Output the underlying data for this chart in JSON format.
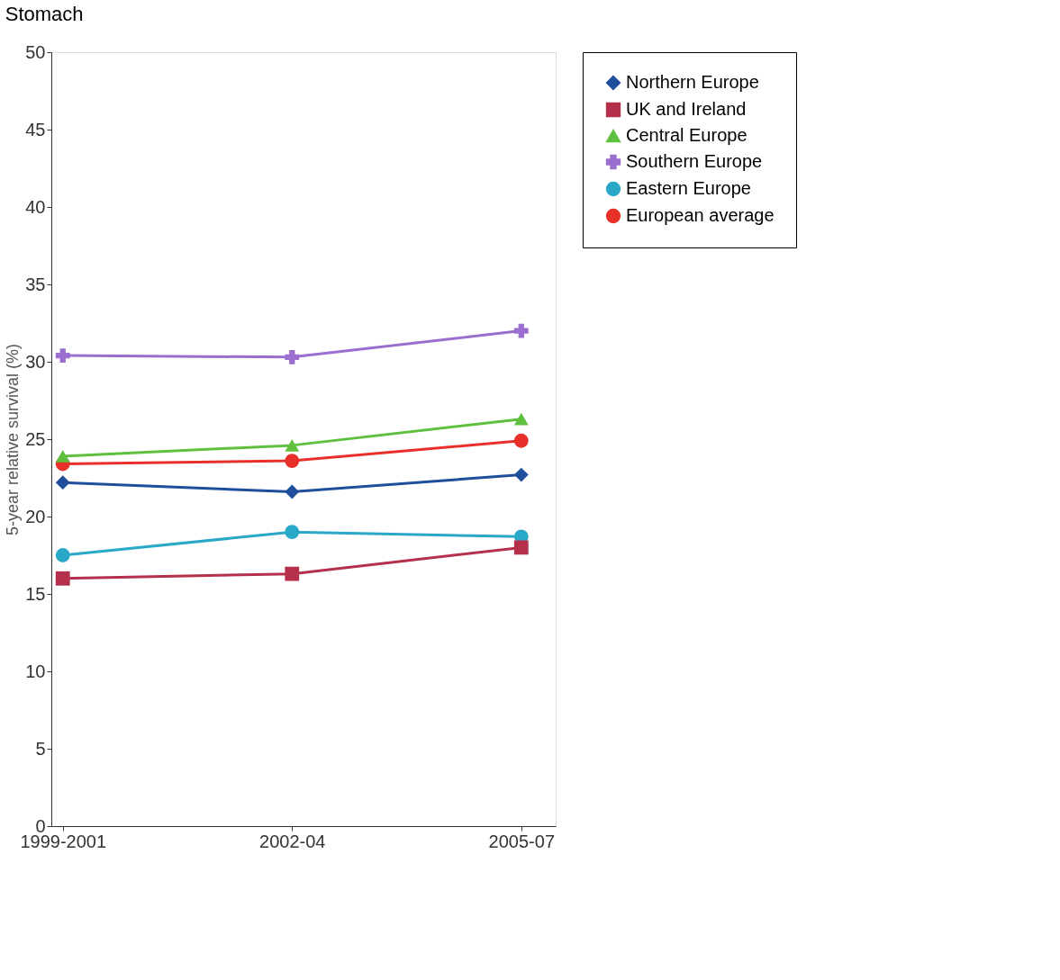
{
  "chart_data": {
    "type": "line",
    "title": "Stomach",
    "ylabel": "5-year relative survival (%)",
    "categories": [
      "1999-2001",
      "2002-04",
      "2005-07"
    ],
    "series": [
      {
        "name": "Northern Europe",
        "color": "#1f4e9c",
        "marker": "diamond",
        "values": [
          22.2,
          21.6,
          22.7
        ]
      },
      {
        "name": "UK and Ireland",
        "color": "#b5304a",
        "marker": "square",
        "values": [
          16.0,
          16.3,
          18.0
        ]
      },
      {
        "name": "Central Europe",
        "color": "#5fbf3f",
        "marker": "triangle",
        "values": [
          23.9,
          24.6,
          26.3
        ]
      },
      {
        "name": "Southern Europe",
        "color": "#9b6fcf",
        "marker": "cross",
        "values": [
          30.4,
          30.3,
          32.0
        ]
      },
      {
        "name": "Eastern Europe",
        "color": "#2aa8c8",
        "marker": "circle",
        "values": [
          17.5,
          19.0,
          18.7
        ]
      },
      {
        "name": "European average",
        "color": "#e8302a",
        "marker": "circle",
        "values": [
          23.4,
          23.6,
          24.9
        ]
      }
    ],
    "ylim": [
      0,
      50
    ],
    "yticks": [
      0,
      5,
      10,
      15,
      20,
      25,
      30,
      35,
      40,
      45,
      50
    ],
    "grid": false,
    "legend": "right",
    "line_style": "solid"
  }
}
